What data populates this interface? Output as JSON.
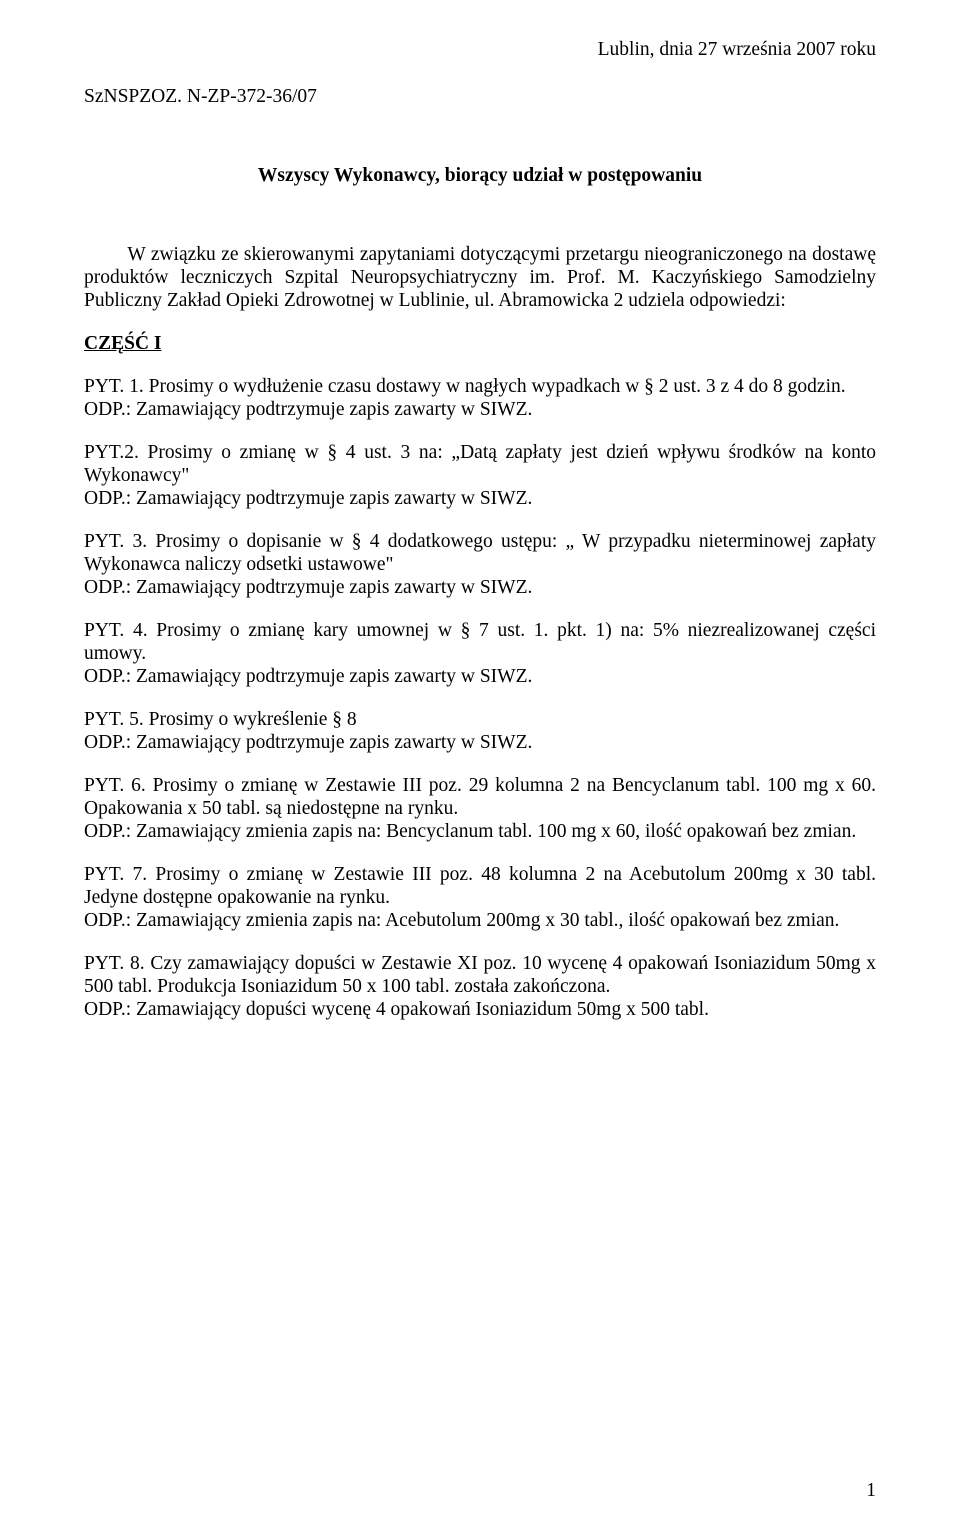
{
  "date_line": "Lublin, dnia 27 września 2007 roku",
  "reference": "SzNSPZOZ. N-ZP-372-36/07",
  "recipient": "Wszyscy Wykonawcy, biorący udział w postępowaniu",
  "intro": "W związku ze skierowanymi zapytaniami dotyczącymi przetargu nieograniczonego na dostawę produktów leczniczych Szpital Neuropsychiatryczny im. Prof. M. Kaczyńskiego Samodzielny Publiczny Zakład Opieki Zdrowotnej w Lublinie, ul. Abramowicka 2 udziela odpowiedzi:",
  "part_label": "CZĘŚĆ I",
  "qa": [
    {
      "q": "PYT. 1. Prosimy o wydłużenie czasu dostawy w nagłych wypadkach w § 2 ust. 3 z 4 do 8 godzin.",
      "a": "ODP.: Zamawiający podtrzymuje zapis zawarty w SIWZ."
    },
    {
      "q": "PYT.2. Prosimy o zmianę w § 4 ust. 3 na: „Datą zapłaty jest dzień wpływu środków na konto Wykonawcy\"",
      "a": "ODP.: Zamawiający podtrzymuje zapis zawarty w SIWZ."
    },
    {
      "q": "PYT. 3. Prosimy o dopisanie w § 4  dodatkowego ustępu: „ W przypadku nieterminowej zapłaty Wykonawca naliczy odsetki ustawowe\"",
      "a": "ODP.: Zamawiający podtrzymuje zapis zawarty w SIWZ."
    },
    {
      "q": "PYT. 4. Prosimy o zmianę kary umownej w § 7 ust. 1. pkt. 1) na: 5% niezrealizowanej części umowy.",
      "a": "ODP.: Zamawiający podtrzymuje zapis zawarty w SIWZ."
    },
    {
      "q": "PYT. 5. Prosimy o wykreślenie § 8",
      "a": "ODP.:  Zamawiający podtrzymuje zapis zawarty w SIWZ."
    },
    {
      "q": "PYT. 6. Prosimy o zmianę w Zestawie III poz. 29 kolumna 2 na Bencyclanum tabl. 100 mg x 60. Opakowania x 50 tabl. są niedostępne na rynku.",
      "a": "ODP.: Zamawiający zmienia zapis na: Bencyclanum tabl. 100 mg x 60, ilość opakowań bez zmian."
    },
    {
      "q": "PYT. 7. Prosimy o zmianę w Zestawie III poz. 48 kolumna 2 na Acebutolum 200mg x 30 tabl. Jedyne dostępne opakowanie na rynku.",
      "a": "ODP.: Zamawiający zmienia zapis na:  Acebutolum 200mg x 30 tabl., ilość opakowań bez zmian."
    },
    {
      "q": "PYT. 8. Czy zamawiający dopuści w Zestawie XI poz. 10 wycenę 4 opakowań Isoniazidum 50mg x 500 tabl. Produkcja Isoniazidum 50 x 100 tabl. została zakończona.",
      "a": "ODP.: Zamawiający dopuści wycenę 4 opakowań Isoniazidum 50mg x 500 tabl."
    }
  ],
  "page_number": "1"
}
